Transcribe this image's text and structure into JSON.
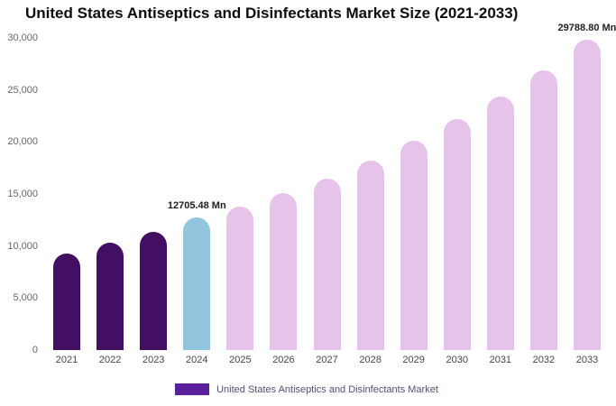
{
  "title": "United States Antiseptics and Disinfectants Market Size (2021-2033)",
  "legend": {
    "label": "United States Antiseptics and Disinfectants Market",
    "swatch_color": "#5b1f9c"
  },
  "palette": {
    "historical_purple": "#420f63",
    "current_year_blue": "#92c5de",
    "forecast_pink": "#e6c3e8"
  },
  "chart_data": {
    "type": "bar",
    "title": "United States Antiseptics and Disinfectants Market Size (2021-2033)",
    "categories": [
      "2021",
      "2022",
      "2023",
      "2024",
      "2025",
      "2026",
      "2027",
      "2028",
      "2029",
      "2030",
      "2031",
      "2032",
      "2033"
    ],
    "values": [
      9300,
      10300,
      11400,
      12705.48,
      13800,
      15100,
      16500,
      18200,
      20100,
      22200,
      24400,
      26900,
      29788.8
    ],
    "bar_colors": [
      "#420f63",
      "#420f63",
      "#420f63",
      "#92c5de",
      "#e6c3e8",
      "#e6c3e8",
      "#e6c3e8",
      "#e6c3e8",
      "#e6c3e8",
      "#e6c3e8",
      "#e6c3e8",
      "#e6c3e8",
      "#e6c3e8"
    ],
    "annotations": [
      {
        "index": 3,
        "label": "12705.48 Mn"
      },
      {
        "index": 12,
        "label": "29788.80 Mn"
      }
    ],
    "ylim": [
      0,
      30000
    ],
    "yticks": [
      {
        "value": 0,
        "label": "0"
      },
      {
        "value": 5000,
        "label": "5,000"
      },
      {
        "value": 10000,
        "label": "10,000"
      },
      {
        "value": 15000,
        "label": "15,000"
      },
      {
        "value": 20000,
        "label": "20,000"
      },
      {
        "value": 25000,
        "label": "25,000"
      },
      {
        "value": 30000,
        "label": "30,000"
      }
    ],
    "legend_entries": [
      "United States Antiseptics and Disinfectants Market"
    ],
    "legend_position": "bottom",
    "grid": false
  }
}
